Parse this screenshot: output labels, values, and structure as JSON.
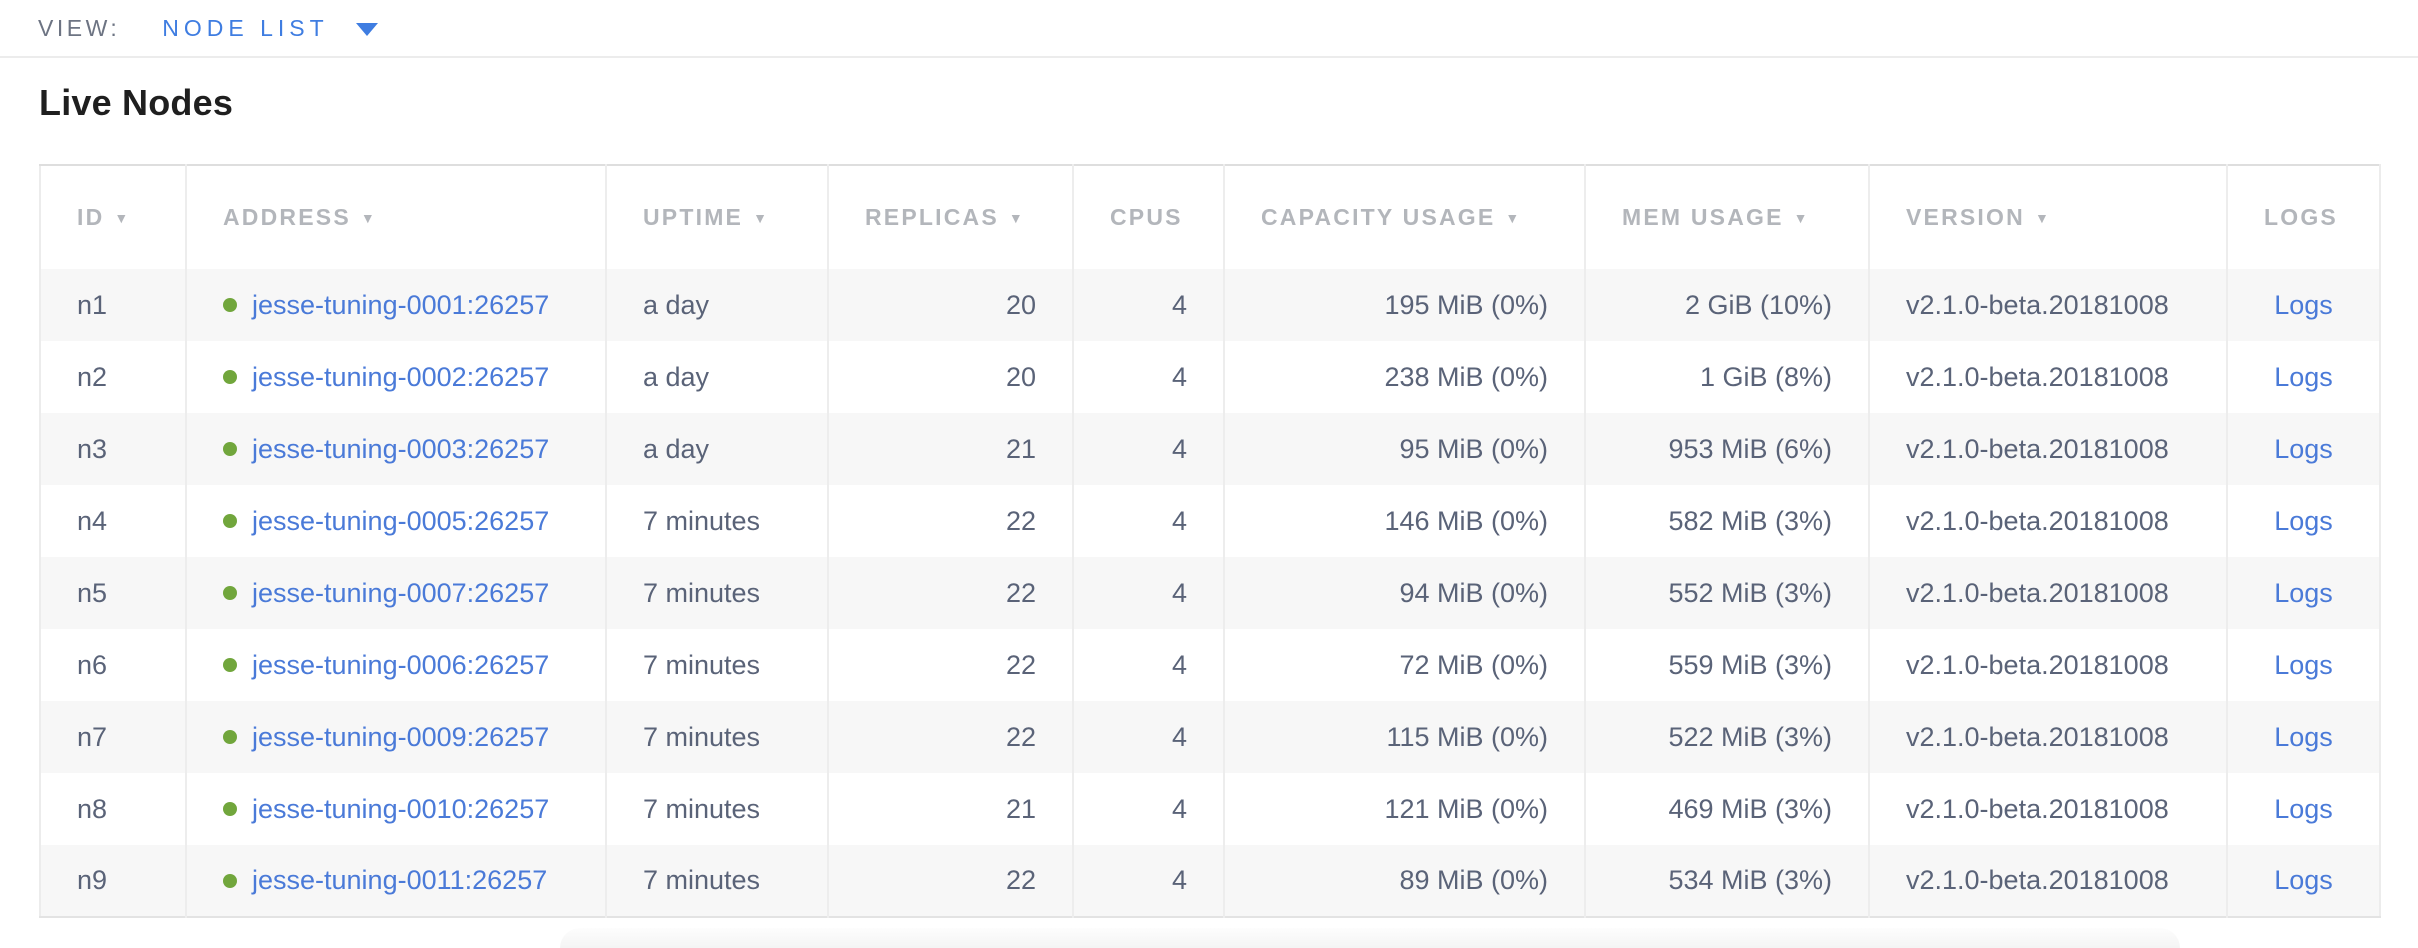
{
  "view_bar": {
    "label": "VIEW:",
    "selected": "NODE LIST"
  },
  "page": {
    "title": "Live Nodes"
  },
  "table": {
    "columns": [
      {
        "key": "id",
        "label": "ID",
        "sortable": true,
        "align": "left"
      },
      {
        "key": "address",
        "label": "ADDRESS",
        "sortable": true,
        "align": "left"
      },
      {
        "key": "uptime",
        "label": "UPTIME",
        "sortable": true,
        "align": "left"
      },
      {
        "key": "replicas",
        "label": "REPLICAS",
        "sortable": true,
        "align": "right"
      },
      {
        "key": "cpus",
        "label": "CPUS",
        "sortable": false,
        "align": "right"
      },
      {
        "key": "capacity",
        "label": "CAPACITY USAGE",
        "sortable": true,
        "align": "right"
      },
      {
        "key": "mem",
        "label": "MEM USAGE",
        "sortable": true,
        "align": "right"
      },
      {
        "key": "version",
        "label": "VERSION",
        "sortable": true,
        "align": "left"
      },
      {
        "key": "logs",
        "label": "LOGS",
        "sortable": false,
        "align": "center"
      }
    ],
    "rows": [
      {
        "id": "n1",
        "status": "live",
        "address": "jesse-tuning-0001:26257",
        "uptime": "a day",
        "replicas": "20",
        "cpus": "4",
        "capacity": "195 MiB (0%)",
        "mem": "2 GiB (10%)",
        "version": "v2.1.0-beta.20181008",
        "logs": "Logs"
      },
      {
        "id": "n2",
        "status": "live",
        "address": "jesse-tuning-0002:26257",
        "uptime": "a day",
        "replicas": "20",
        "cpus": "4",
        "capacity": "238 MiB (0%)",
        "mem": "1 GiB (8%)",
        "version": "v2.1.0-beta.20181008",
        "logs": "Logs"
      },
      {
        "id": "n3",
        "status": "live",
        "address": "jesse-tuning-0003:26257",
        "uptime": "a day",
        "replicas": "21",
        "cpus": "4",
        "capacity": "95 MiB (0%)",
        "mem": "953 MiB (6%)",
        "version": "v2.1.0-beta.20181008",
        "logs": "Logs"
      },
      {
        "id": "n4",
        "status": "live",
        "address": "jesse-tuning-0005:26257",
        "uptime": "7 minutes",
        "replicas": "22",
        "cpus": "4",
        "capacity": "146 MiB (0%)",
        "mem": "582 MiB (3%)",
        "version": "v2.1.0-beta.20181008",
        "logs": "Logs"
      },
      {
        "id": "n5",
        "status": "live",
        "address": "jesse-tuning-0007:26257",
        "uptime": "7 minutes",
        "replicas": "22",
        "cpus": "4",
        "capacity": "94 MiB (0%)",
        "mem": "552 MiB (3%)",
        "version": "v2.1.0-beta.20181008",
        "logs": "Logs"
      },
      {
        "id": "n6",
        "status": "live",
        "address": "jesse-tuning-0006:26257",
        "uptime": "7 minutes",
        "replicas": "22",
        "cpus": "4",
        "capacity": "72 MiB (0%)",
        "mem": "559 MiB (3%)",
        "version": "v2.1.0-beta.20181008",
        "logs": "Logs"
      },
      {
        "id": "n7",
        "status": "live",
        "address": "jesse-tuning-0009:26257",
        "uptime": "7 minutes",
        "replicas": "22",
        "cpus": "4",
        "capacity": "115 MiB (0%)",
        "mem": "522 MiB (3%)",
        "version": "v2.1.0-beta.20181008",
        "logs": "Logs"
      },
      {
        "id": "n8",
        "status": "live",
        "address": "jesse-tuning-0010:26257",
        "uptime": "7 minutes",
        "replicas": "21",
        "cpus": "4",
        "capacity": "121 MiB (0%)",
        "mem": "469 MiB (3%)",
        "version": "v2.1.0-beta.20181008",
        "logs": "Logs"
      },
      {
        "id": "n9",
        "status": "live",
        "address": "jesse-tuning-0011:26257",
        "uptime": "7 minutes",
        "replicas": "22",
        "cpus": "4",
        "capacity": "89 MiB (0%)",
        "mem": "534 MiB (3%)",
        "version": "v2.1.0-beta.20181008",
        "logs": "Logs"
      }
    ]
  },
  "icons": {
    "view_caret": "chevron-down",
    "sort_arrow": "triangle-down",
    "node_status": "green-dot"
  },
  "colors": {
    "accent": "#3f7de1",
    "link": "#4a7ad8",
    "live_dot": "#71a63c",
    "header_text": "#b3b6bb",
    "cell_text": "#5a6378",
    "title_text": "#1f1f1f",
    "view_label": "#6d7483",
    "row_alt_bg": "#f7f7f7",
    "border": "#ededed"
  }
}
